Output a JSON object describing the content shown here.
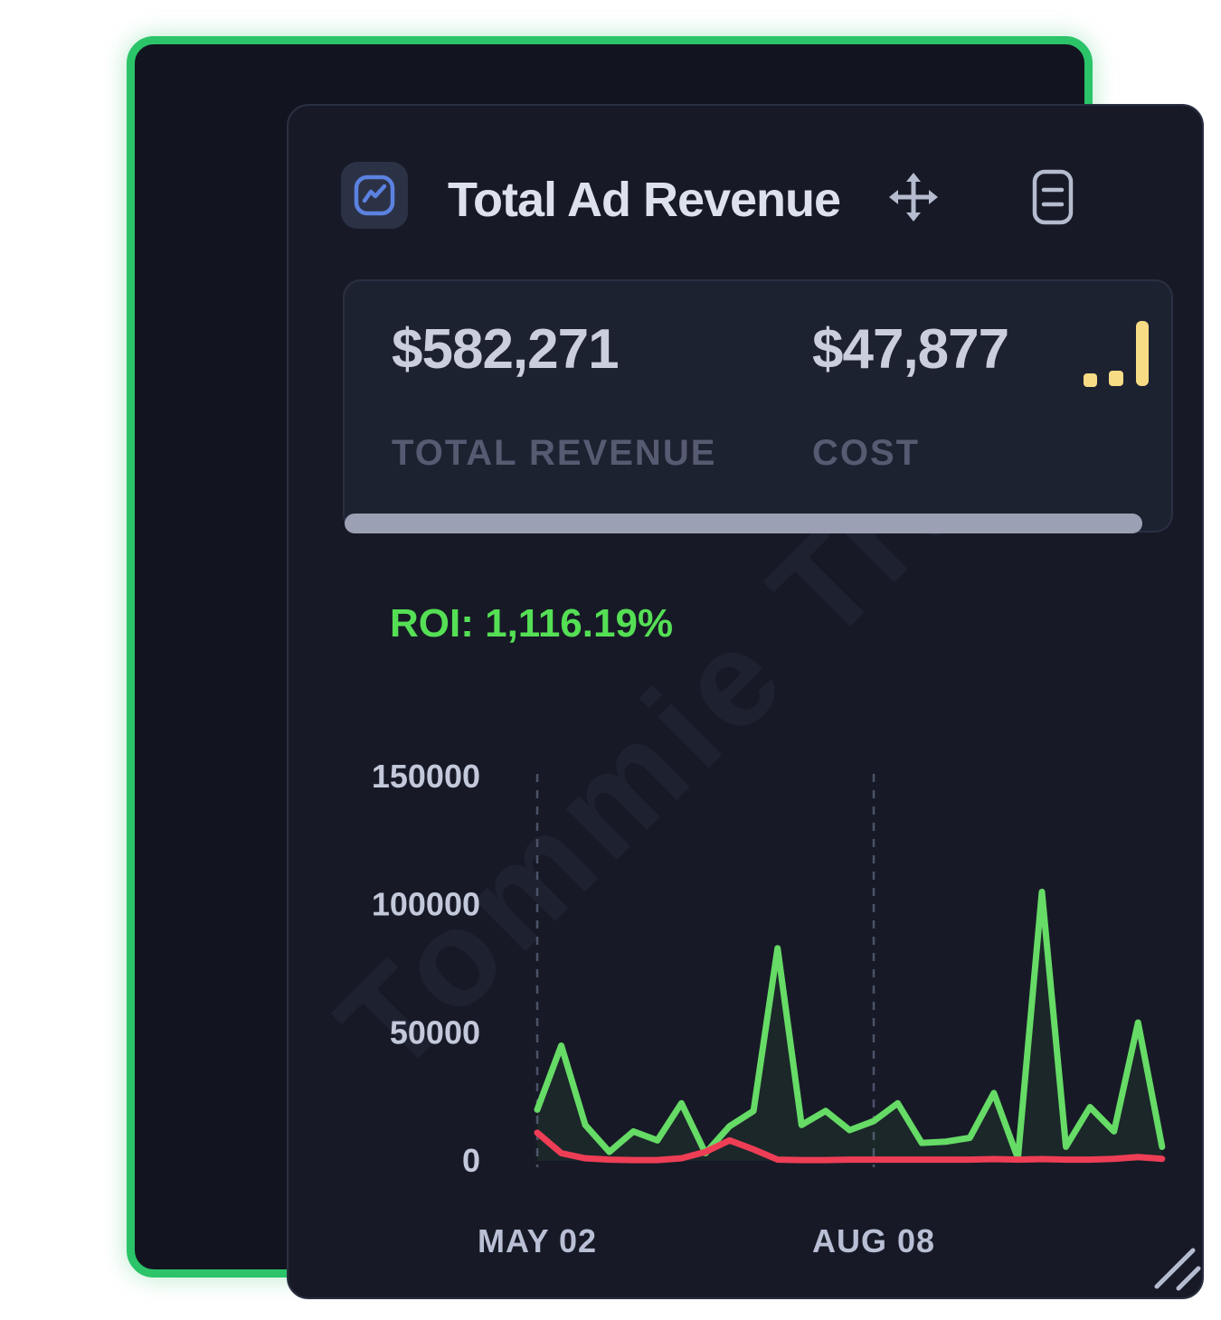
{
  "card": {
    "title": "Total Ad Revenue",
    "stats": {
      "revenue_value": "$582,271",
      "revenue_label": "TOTAL REVENUE",
      "cost_value": "$47,877",
      "cost_label": "COST"
    },
    "roi_text": "ROI: 1,116.19%",
    "watermark": "Tommie Traffic"
  },
  "colors": {
    "frame_green": "#2bc469",
    "card_bg": "#171a26",
    "stats_box_bg": "#1d2231",
    "accent_yellow": "#f8dc85",
    "icon_blue": "#5b82e0",
    "roi_green": "#55df55",
    "revenue_green": "#66db66",
    "cost_red": "#ee3e55",
    "progress_gray": "#9ba0b4",
    "axis_text": "#c3c8da",
    "x_label_text": "#b9bfd4",
    "grid_dash": "#4c5269",
    "header_icon_gray": "#b6bccf"
  },
  "chart_data": {
    "type": "line",
    "title": "",
    "xlabel": "",
    "ylabel": "",
    "legend": "none",
    "grid": "vertical-dashed-at-x-ticks",
    "ylim": [
      0,
      150000
    ],
    "yticks": [
      0,
      50000,
      100000,
      150000
    ],
    "x_tick_labels": [
      {
        "index": 0,
        "label": "MAY 02"
      },
      {
        "index": 14,
        "label": "AUG 08"
      }
    ],
    "x_unit": "week",
    "series": [
      {
        "name": "revenue",
        "color": "#66db66",
        "fill": "rgba(102,219,102,0.07)",
        "values": [
          20000,
          45000,
          14000,
          3500,
          11500,
          8000,
          22500,
          3000,
          13500,
          19500,
          83000,
          14000,
          19500,
          12000,
          15500,
          22500,
          7000,
          7500,
          9000,
          26500,
          1000,
          105000,
          5500,
          21000,
          11500,
          54000,
          5500
        ]
      },
      {
        "name": "cost",
        "color": "#ee3e55",
        "fill": "none",
        "values": [
          11000,
          3000,
          1000,
          500,
          300,
          300,
          1000,
          3500,
          8000,
          4500,
          500,
          300,
          300,
          500,
          500,
          500,
          500,
          500,
          500,
          700,
          500,
          700,
          500,
          500,
          800,
          1500,
          800
        ]
      }
    ]
  }
}
